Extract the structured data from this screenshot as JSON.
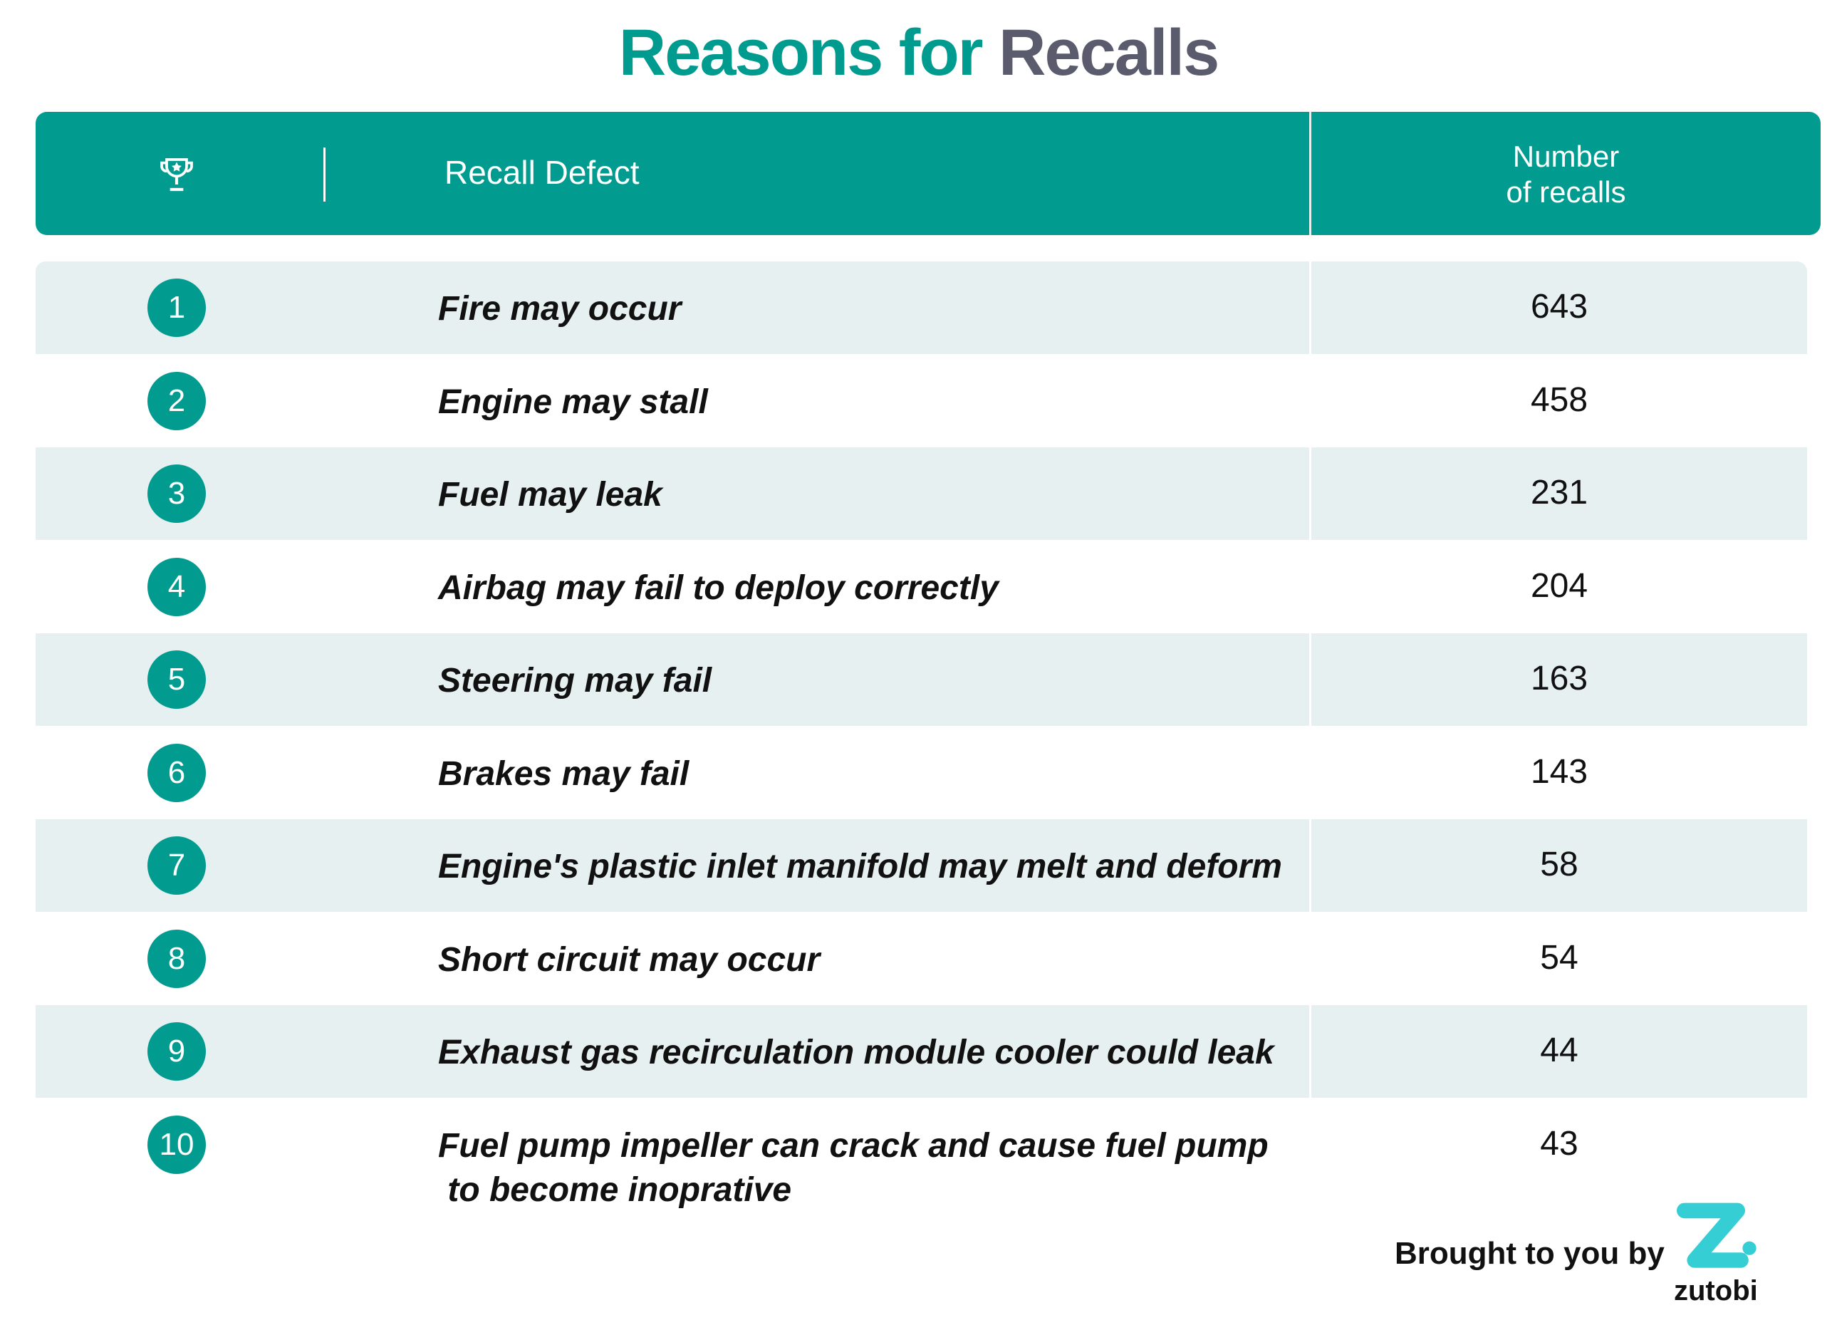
{
  "title": {
    "part1": "Reasons for",
    "part2": "Recalls"
  },
  "header": {
    "rank_icon": "trophy-icon",
    "defect_label": "Recall Defect",
    "count_label_line1": "Number",
    "count_label_line2": "of recalls"
  },
  "rows": [
    {
      "rank": "1",
      "defect": "Fire may occur",
      "count": "643"
    },
    {
      "rank": "2",
      "defect": "Engine may stall",
      "count": "458"
    },
    {
      "rank": "3",
      "defect": "Fuel may leak",
      "count": "231"
    },
    {
      "rank": "4",
      "defect": "Airbag may fail to deploy correctly",
      "count": "204"
    },
    {
      "rank": "5",
      "defect": "Steering may fail",
      "count": "163"
    },
    {
      "rank": "6",
      "defect": "Brakes may fail",
      "count": "143"
    },
    {
      "rank": "7",
      "defect": "Engine's plastic inlet manifold may melt and deform",
      "count": "58"
    },
    {
      "rank": "8",
      "defect": "Short circuit may occur",
      "count": "54"
    },
    {
      "rank": "9",
      "defect": "Exhaust gas recirculation module cooler could leak",
      "count": "44"
    },
    {
      "rank": "10",
      "defect": "Fuel pump impeller can crack and cause fuel pump\n to become inoprative",
      "count": "43"
    }
  ],
  "footer": {
    "text": "Brought to you by",
    "logo_text": "zutobi"
  },
  "colors": {
    "accent": "#019b8f",
    "title_gray": "#5a5c6e",
    "row_alt": "#e6f0f0",
    "logo": "#36ced5"
  }
}
